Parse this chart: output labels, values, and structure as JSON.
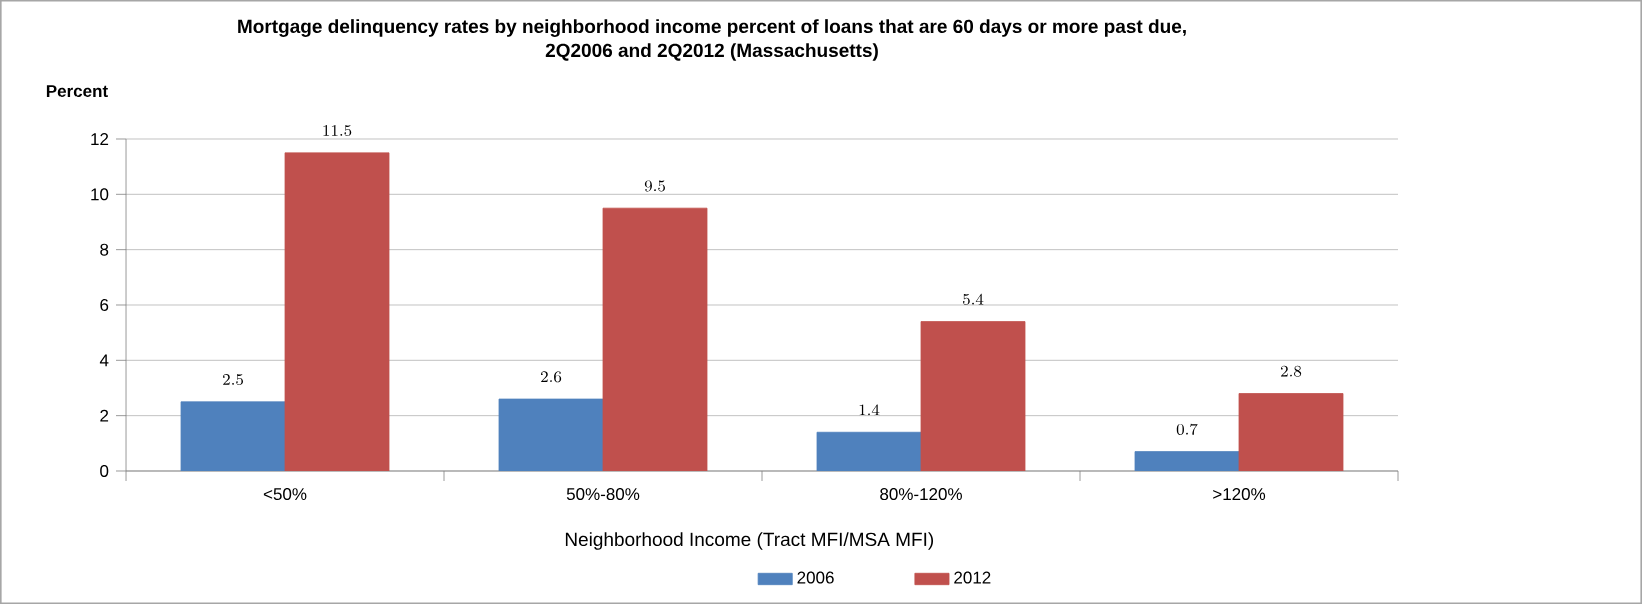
{
  "chart_data": {
    "type": "bar",
    "title": "Mortgage delinquency rates by neighborhood income  percent of loans that are 60 days or more past due,",
    "subtitle": "2Q2006 and 2Q2012 (Massachusetts)",
    "xlabel": "Neighborhood Income (Tract MFI/MSA MFI)",
    "ylabel": "Percent",
    "categories": [
      "<50%",
      "50%-80%",
      "80%-120%",
      ">120%"
    ],
    "series": [
      {
        "name": "2006",
        "color": "#4f81bd",
        "values": [
          2.5,
          2.6,
          1.4,
          0.7
        ]
      },
      {
        "name": "2012",
        "color": "#c0504d",
        "values": [
          11.5,
          9.5,
          5.4,
          2.8
        ]
      }
    ],
    "ylim": [
      0,
      12
    ],
    "yticks": [
      0,
      2,
      4,
      6,
      8,
      10,
      12
    ],
    "grid": "y",
    "legend": "bottom",
    "data_labels": true
  }
}
